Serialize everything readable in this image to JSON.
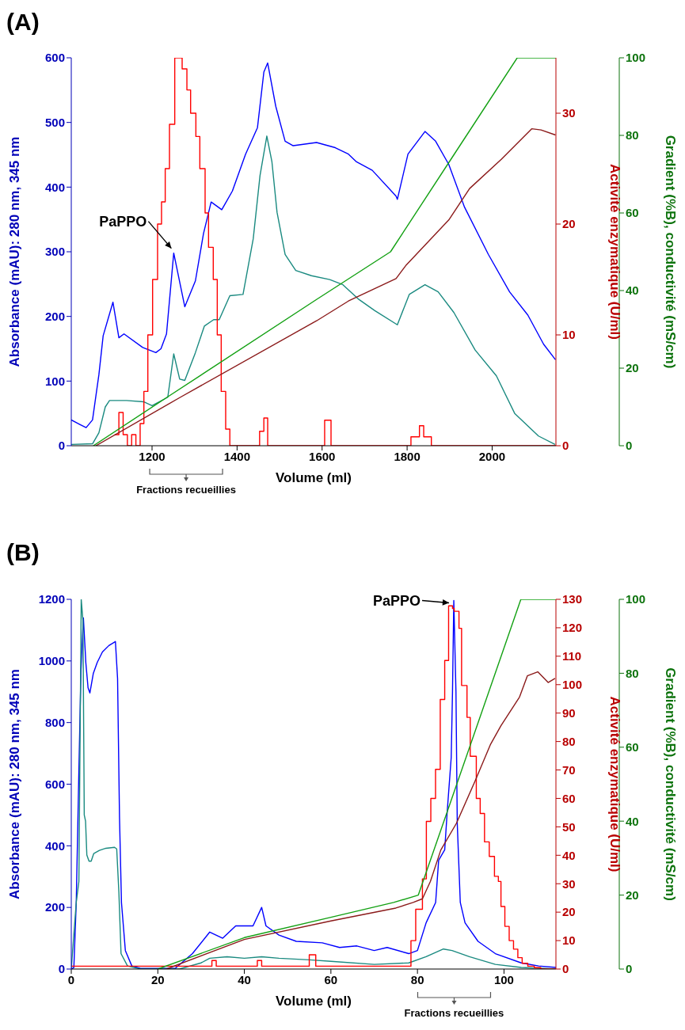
{
  "chart_data": [
    {
      "type": "line",
      "title": "(A)",
      "xlabel": "Volume (ml)",
      "ylabel": "Absorbance (mAU): 280 nm, 345 nm",
      "y2label": "Activité enzymatique (U/ml)",
      "y3label": "Gradient (%B), conductivité (mS/cm)",
      "xlim": [
        1010,
        2150
      ],
      "xticks": [
        1200,
        1400,
        1600,
        1800,
        2000
      ],
      "ylim": [
        0,
        600
      ],
      "yticks": [
        0,
        100,
        200,
        300,
        400,
        500,
        600
      ],
      "y2lim": [
        0,
        35
      ],
      "y2ticks": [
        0,
        10,
        20,
        30
      ],
      "y3lim": [
        0,
        100
      ],
      "y3ticks": [
        0,
        20,
        40,
        60,
        80,
        100
      ],
      "annotations": [
        {
          "text": "PaPPO",
          "x": 1251,
          "y": 298
        },
        "Fractions recueillies"
      ],
      "series": [
        {
          "color": "#0000ff",
          "x": [
            1010,
            1030,
            1045,
            1060,
            1075,
            1085,
            1108,
            1122,
            1134,
            1178,
            1209,
            1221,
            1234,
            1251,
            1277,
            1302,
            1321,
            1339,
            1364,
            1389,
            1420,
            1448,
            1463,
            1472,
            1491,
            1513,
            1532,
            1587,
            1631,
            1662,
            1681,
            1718,
            1774,
            1777,
            1802,
            1842,
            1867,
            1898,
            1935,
            1991,
            2041,
            2084,
            2121,
            2149
          ],
          "values": [
            40,
            33,
            28,
            40,
            110,
            170,
            222,
            167,
            173,
            152,
            144,
            150,
            173,
            298,
            215,
            255,
            328,
            377,
            365,
            394,
            451,
            492,
            578,
            592,
            525,
            471,
            464,
            469,
            461,
            451,
            439,
            426,
            386,
            381,
            451,
            486,
            471,
            435,
            369,
            296,
            238,
            202,
            157,
            133
          ]
        },
        {
          "color": "#1a8a80",
          "x": [
            1010,
            1060,
            1075,
            1090,
            1100,
            1140,
            1180,
            1200,
            1237,
            1251,
            1265,
            1277,
            1302,
            1323,
            1345,
            1358,
            1383,
            1414,
            1438,
            1454,
            1470,
            1482,
            1494,
            1513,
            1538,
            1575,
            1618,
            1649,
            1687,
            1724,
            1777,
            1805,
            1842,
            1873,
            1910,
            1960,
            2010,
            2053,
            2109,
            2148
          ],
          "values": [
            2,
            3,
            20,
            60,
            70,
            70,
            68,
            62,
            75,
            142,
            103,
            101,
            144,
            185,
            195,
            195,
            232,
            234,
            320,
            418,
            479,
            439,
            361,
            296,
            271,
            263,
            257,
            249,
            226,
            209,
            187,
            234,
            249,
            238,
            206,
            148,
            108,
            50,
            15,
            2
          ]
        },
        {
          "type": "step",
          "axis": "y2",
          "color": "#ff0000",
          "x": [
            1112,
            1122,
            1132,
            1142,
            1152,
            1162,
            1172,
            1180.8,
            1190.1,
            1201.3,
            1213,
            1222.3,
            1231,
            1241,
            1253.4,
            1270.8,
            1282,
            1290.7,
            1303.1,
            1312.4,
            1324.8,
            1332.9,
            1344,
            1353.4,
            1362.7,
            1373.2,
            1383,
            1453,
            1463,
            1472,
            1606,
            1621,
            1809,
            1829,
            1839,
            1857,
            2150
          ],
          "values": [
            1,
            3,
            1,
            0,
            1,
            0,
            2,
            4.9,
            10,
            15,
            20,
            22,
            25,
            29,
            35,
            34,
            32.1,
            30,
            27.9,
            25,
            21,
            17.9,
            15,
            10,
            4.9,
            1.5,
            0,
            1.3,
            2.5,
            0,
            2.3,
            0,
            0.8,
            1.8,
            0.8,
            0,
            0
          ]
        },
        {
          "axis": "y3",
          "color": "#12a012",
          "x": [
            1062,
            1234,
            1587,
            1761,
            1910,
            2059,
            2150
          ],
          "values": [
            0,
            12.4,
            37.7,
            50,
            75,
            100,
            100
          ]
        },
        {
          "axis": "y3",
          "color": "#8b1a1a",
          "x": [
            1068,
            1265,
            1587,
            1662,
            1774,
            1798,
            1898,
            1947,
            2022,
            2093,
            2115,
            2149
          ],
          "values": [
            0,
            12.4,
            32.2,
            37.3,
            43.1,
            46.6,
            58.2,
            66.3,
            73.9,
            81.7,
            81.4,
            80.1
          ]
        }
      ]
    },
    {
      "type": "line",
      "title": "(B)",
      "xlabel": "Volume (ml)",
      "ylabel": "Absorbance (mAU): 280 nm, 345 nm",
      "y2label": "Activité enzymatique (U/ml)",
      "y3label": "Gradient (%B), conductivité (mS/cm)",
      "xlim": [
        0,
        112
      ],
      "xticks": [
        0,
        20,
        40,
        60,
        80,
        100
      ],
      "ylim": [
        0,
        1200
      ],
      "yticks": [
        0,
        200,
        400,
        600,
        800,
        1000,
        1200
      ],
      "y2lim": [
        0,
        130
      ],
      "y2ticks": [
        0,
        10,
        20,
        30,
        40,
        50,
        60,
        70,
        80,
        90,
        100,
        110,
        120,
        130
      ],
      "y3lim": [
        0,
        100
      ],
      "y3ticks": [
        0,
        20,
        40,
        60,
        80,
        100
      ],
      "annotations": [
        {
          "text": "PaPPO",
          "x": 88.4,
          "y": 1196
        },
        "Fractions recueillies"
      ],
      "series": [
        {
          "color": "#0000ff",
          "x": [
            0,
            0.6,
            1.15,
            1.76,
            2.24,
            2.8,
            3.27,
            3.36,
            3.88,
            4.3,
            5.1,
            6.0,
            7.2,
            8.7,
            10.2,
            10.7,
            11.15,
            11.6,
            12.5,
            14,
            16,
            24,
            28,
            32,
            35,
            38,
            42,
            44,
            45,
            48,
            52,
            58,
            62,
            66,
            70,
            73,
            78,
            80,
            82,
            84.2,
            84.9,
            86.3,
            86.9,
            87.8,
            88.1,
            88.4,
            88.9,
            89.2,
            89.9,
            91,
            94,
            98,
            104,
            108,
            112
          ],
          "values": [
            0,
            5,
            216,
            644,
            969,
            1140,
            1020,
            995,
            913,
            896,
            960,
            995,
            1029,
            1050,
            1063,
            943,
            490,
            216,
            60,
            10,
            2,
            2,
            50,
            120,
            100,
            140,
            140,
            200,
            140,
            110,
            90,
            85,
            70,
            75,
            60,
            70,
            50,
            60,
            150,
            216,
            353,
            387,
            515,
            686,
            900,
            1196,
            900,
            473,
            216,
            150,
            90,
            50,
            20,
            10,
            5
          ]
        },
        {
          "color": "#1a8a80",
          "x": [
            0,
            1.15,
            1.76,
            2.3,
            2.7,
            3.0,
            3.3,
            3.6,
            4.1,
            4.6,
            5.2,
            6.5,
            8.0,
            10.0,
            10.5,
            11.0,
            11.5,
            13,
            16,
            25,
            30,
            32,
            36,
            40,
            44,
            48,
            55,
            60,
            70,
            78,
            82,
            86,
            88,
            92,
            98,
            104,
            112
          ],
          "values": [
            0,
            216,
            284,
            1200,
            1130,
            500,
            480,
            370,
            350,
            350,
            375,
            385,
            392,
            395,
            390,
            250,
            50,
            10,
            0,
            0,
            20,
            35,
            40,
            35,
            40,
            35,
            30,
            25,
            15,
            20,
            40,
            65,
            60,
            40,
            15,
            5,
            0
          ]
        },
        {
          "type": "step",
          "axis": "y2",
          "color": "#ff0000",
          "x": [
            0,
            32.5,
            33.5,
            43,
            44,
            55,
            56.5,
            78.5,
            79.6,
            81.15,
            82.06,
            83.09,
            84.18,
            85.27,
            86.3,
            87.2,
            88.1,
            88.5,
            89.6,
            90.2,
            91.45,
            92.2,
            93.6,
            94.5,
            95.5,
            96.6,
            97.8,
            98.7,
            99.3,
            100.2,
            101.2,
            102.2,
            103.2,
            104.2,
            105.5,
            107,
            108.5,
            110,
            112
          ],
          "values": [
            1,
            3,
            1,
            3,
            1,
            5,
            1,
            10,
            21,
            31.7,
            51.9,
            60,
            70.2,
            94.8,
            108.5,
            127.7,
            126.8,
            125.8,
            119.8,
            99.7,
            88.5,
            74.8,
            60,
            54.7,
            44.7,
            39.6,
            32.6,
            30.8,
            22,
            15,
            10,
            7,
            4,
            2,
            1,
            0.5,
            0,
            0,
            0
          ]
        },
        {
          "axis": "y3",
          "color": "#12a012",
          "x": [
            20,
            40,
            60,
            74.5,
            80.2,
            103.9,
            112
          ],
          "values": [
            0,
            8.5,
            14,
            18,
            20,
            100,
            100
          ]
        },
        {
          "axis": "y3",
          "color": "#8b1a1a",
          "x": [
            22,
            40,
            60,
            75,
            79,
            81.15,
            83,
            85.4,
            89,
            93.3,
            96.9,
            99.3,
            103.6,
            105.4,
            107.8,
            110.2,
            111.8
          ],
          "values": [
            0,
            8,
            13,
            16.5,
            18,
            19,
            23.7,
            32.2,
            39.4,
            50.8,
            60.8,
            65.8,
            73.6,
            79.3,
            80.4,
            77.5,
            78.6
          ]
        }
      ]
    }
  ]
}
